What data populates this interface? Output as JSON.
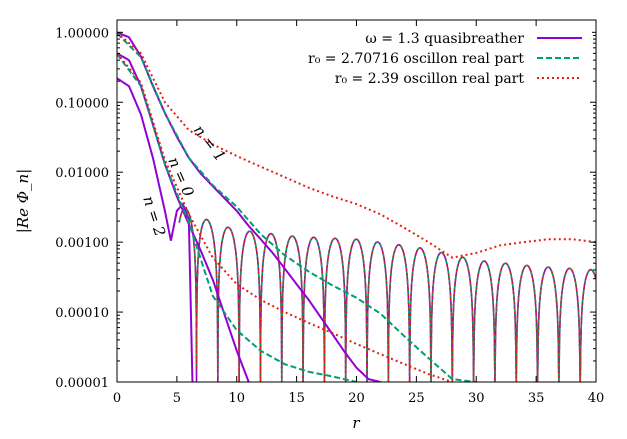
{
  "chart_data": {
    "type": "line",
    "title": "",
    "xlabel": "r",
    "ylabel": "|Re Φ_n|",
    "xlim": [
      0,
      40
    ],
    "ylim": [
      1e-05,
      1.5
    ],
    "y_scale": "log",
    "grid": false,
    "legend_position": "top-right",
    "x_ticks": [
      "0",
      "5",
      "10",
      "15",
      "20",
      "25",
      "30",
      "35",
      "40"
    ],
    "y_ticks": [
      "1.00000",
      "0.10000",
      "0.01000",
      "0.00100",
      "0.00010",
      "0.00001"
    ],
    "legend": [
      "ω = 1.3 quasibreather",
      "r₀ = 2.70716 oscillon real part",
      "r₀ = 2.39 oscillon real part"
    ],
    "annotations": [
      "n = 1",
      "n = 0",
      "n = 2"
    ],
    "colors": {
      "quasibreather": "#9400d3",
      "oscillon_270716": "#009e73",
      "oscillon_239": "#e51e10"
    },
    "series": [
      {
        "name": "ω = 1.3 quasibreather",
        "curves": [
          {
            "n": "1",
            "x": [
              0,
              1,
              2,
              3,
              4,
              5,
              6,
              7,
              8,
              9,
              10,
              11,
              12,
              13,
              14,
              15,
              16,
              17,
              18,
              19,
              20,
              21,
              22
            ],
            "y": [
              1.0,
              0.85,
              0.45,
              0.17,
              0.07,
              0.032,
              0.016,
              0.0095,
              0.0063,
              0.0042,
              0.0028,
              0.0017,
              0.0011,
              0.0007,
              0.00042,
              0.00025,
              0.00015,
              8.5e-05,
              4.8e-05,
              2.7e-05,
              1.6e-05,
              1.1e-05,
              1e-05
            ]
          },
          {
            "n": "0",
            "x": [
              0,
              1,
              2,
              3,
              4,
              5,
              6,
              7,
              8,
              9,
              10,
              11
            ],
            "y": [
              0.5,
              0.4,
              0.17,
              0.048,
              0.013,
              0.0045,
              0.0018,
              0.00075,
              0.00029,
              9e-05,
              2.8e-05,
              1e-05
            ]
          },
          {
            "n": "2",
            "x": [
              0,
              1,
              2,
              3,
              4,
              4.5,
              5,
              5.5,
              6,
              6.3
            ],
            "y": [
              0.22,
              0.17,
              0.067,
              0.016,
              0.0028,
              0.00105,
              0.0028,
              0.0035,
              0.0021,
              1e-05
            ]
          }
        ]
      },
      {
        "name": "r₀ = 2.70716 oscillon real part",
        "curves": [
          {
            "n": "1",
            "x": [
              0,
              2,
              4,
              6,
              8,
              10,
              12,
              14,
              16,
              18,
              20,
              22,
              24,
              26,
              28,
              30
            ],
            "y": [
              0.97,
              0.44,
              0.07,
              0.016,
              0.0065,
              0.0032,
              0.0013,
              0.00065,
              0.00038,
              0.00024,
              0.00016,
              9.5e-05,
              4.5e-05,
              2.2e-05,
              1.1e-05,
              1e-05
            ]
          },
          {
            "n": "0",
            "x": [
              0,
              2,
              4,
              6,
              8,
              10,
              12,
              14,
              16,
              18,
              20
            ],
            "y": [
              0.49,
              0.17,
              0.013,
              0.0019,
              0.00017,
              5.5e-05,
              2.8e-05,
              1.8e-05,
              1.4e-05,
              1.2e-05,
              1e-05
            ]
          }
        ]
      },
      {
        "name": "r₀ = 2.39 oscillon real part",
        "curves": [
          {
            "n": "1",
            "x": [
              0,
              2,
              4,
              6,
              8,
              10,
              12,
              14,
              16,
              18,
              20,
              22,
              24,
              26,
              28,
              30,
              32,
              34,
              36,
              38,
              40
            ],
            "y": [
              0.99,
              0.5,
              0.1,
              0.04,
              0.025,
              0.017,
              0.012,
              0.0085,
              0.006,
              0.0045,
              0.0035,
              0.0025,
              0.0016,
              0.001,
              0.0006,
              0.0007,
              0.0009,
              0.001,
              0.0011,
              0.0011,
              0.001
            ]
          },
          {
            "n": "0",
            "x": [
              0,
              2,
              4,
              6,
              8,
              10,
              12,
              14,
              16,
              18,
              20,
              22,
              24,
              26,
              28
            ],
            "y": [
              0.5,
              0.19,
              0.015,
              0.0025,
              0.0006,
              0.00025,
              0.00015,
              0.0001,
              7e-05,
              5e-05,
              3.5e-05,
              2.5e-05,
              1.8e-05,
              1.3e-05,
              1e-05
            ]
          }
        ]
      }
    ],
    "oscillating_envelope": {
      "x": [
        5,
        8,
        10,
        15,
        20,
        25,
        30,
        35,
        40
      ],
      "y": [
        0.0035,
        0.0019,
        0.0015,
        0.0012,
        0.0011,
        0.00085,
        0.00055,
        0.00045,
        0.0004
      ]
    }
  }
}
